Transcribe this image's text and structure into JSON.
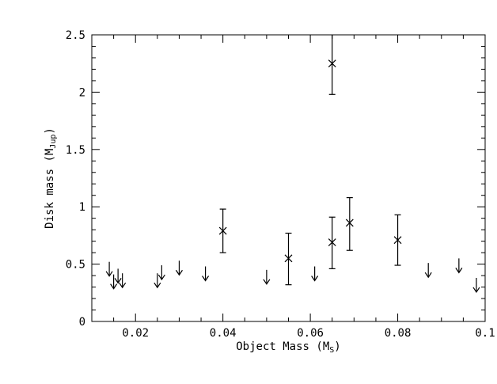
{
  "chart_data": {
    "type": "scatter",
    "xlabel": "Object Mass (M",
    "xlabel_sub": "S",
    "xlabel_close": ")",
    "ylabel": "Disk  mass (M",
    "ylabel_sub": "Jup",
    "ylabel_close": ")",
    "xlim": [
      0.01,
      0.1
    ],
    "ylim": [
      0,
      2.5
    ],
    "x_ticks": [
      0.02,
      0.04,
      0.06,
      0.08,
      0.1
    ],
    "x_tick_labels": [
      "0.02",
      "0.04",
      "0.06",
      "0.08",
      "0.1"
    ],
    "y_ticks": [
      0,
      0.5,
      1,
      1.5,
      2,
      2.5
    ],
    "y_tick_labels": [
      "0",
      "0.5",
      "1",
      "1.5",
      "2",
      "2.5"
    ],
    "grid": false,
    "detections": [
      {
        "x": 0.04,
        "y": 0.79,
        "err_low": 0.6,
        "err_high": 0.98
      },
      {
        "x": 0.055,
        "y": 0.55,
        "err_low": 0.32,
        "err_high": 0.77
      },
      {
        "x": 0.065,
        "y": 2.25,
        "err_low": 1.98,
        "err_high": 2.5
      },
      {
        "x": 0.065,
        "y": 0.69,
        "err_low": 0.46,
        "err_high": 0.91
      },
      {
        "x": 0.069,
        "y": 0.86,
        "err_low": 0.62,
        "err_high": 1.08
      },
      {
        "x": 0.08,
        "y": 0.71,
        "err_low": 0.49,
        "err_high": 0.93
      }
    ],
    "upper_limits": [
      {
        "x": 0.014,
        "y": 0.52
      },
      {
        "x": 0.015,
        "y": 0.41
      },
      {
        "x": 0.016,
        "y": 0.46
      },
      {
        "x": 0.017,
        "y": 0.42
      },
      {
        "x": 0.025,
        "y": 0.42
      },
      {
        "x": 0.026,
        "y": 0.49
      },
      {
        "x": 0.03,
        "y": 0.53
      },
      {
        "x": 0.036,
        "y": 0.48
      },
      {
        "x": 0.05,
        "y": 0.45
      },
      {
        "x": 0.061,
        "y": 0.48
      },
      {
        "x": 0.087,
        "y": 0.51
      },
      {
        "x": 0.094,
        "y": 0.55
      },
      {
        "x": 0.098,
        "y": 0.38
      }
    ]
  }
}
